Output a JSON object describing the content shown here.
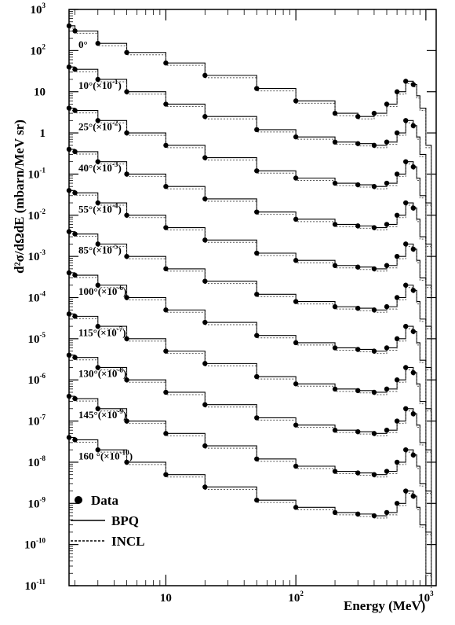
{
  "chart_data": {
    "type": "line",
    "xlabel": "Energy (MeV)",
    "ylabel": "d²σ/dΩdE (mbarn/MeV sr)",
    "xscale": "log",
    "yscale": "log",
    "xlim": [
      1.8,
      1200
    ],
    "ylim": [
      1e-11,
      1000
    ],
    "x_ticks": [
      {
        "value": 10,
        "base": "10",
        "exp": ""
      },
      {
        "value": 100,
        "base": "10",
        "exp": "2"
      },
      {
        "value": 1000,
        "base": "10",
        "exp": "3"
      }
    ],
    "y_ticks": [
      {
        "value": 1000,
        "base": "10",
        "exp": "3"
      },
      {
        "value": 100,
        "base": "10",
        "exp": "2"
      },
      {
        "value": 10,
        "base": "10",
        "exp": ""
      },
      {
        "value": 1,
        "base": "1",
        "exp": ""
      },
      {
        "value": 0.1,
        "base": "10",
        "exp": "-1"
      },
      {
        "value": 0.01,
        "base": "10",
        "exp": "-2"
      },
      {
        "value": 0.001,
        "base": "10",
        "exp": "-3"
      },
      {
        "value": 0.0001,
        "base": "10",
        "exp": "-4"
      },
      {
        "value": 1e-05,
        "base": "10",
        "exp": "-5"
      },
      {
        "value": 1e-06,
        "base": "10",
        "exp": "-6"
      },
      {
        "value": 1e-07,
        "base": "10",
        "exp": "-7"
      },
      {
        "value": 1e-08,
        "base": "10",
        "exp": "-8"
      },
      {
        "value": 1e-09,
        "base": "10",
        "exp": "-9"
      },
      {
        "value": 1e-10,
        "base": "10",
        "exp": "-10"
      },
      {
        "value": 1e-11,
        "base": "10",
        "exp": "-11"
      }
    ],
    "legend": {
      "position": "bottom-left",
      "entries": [
        {
          "label": "Data",
          "style": "marker"
        },
        {
          "label": "BPQ",
          "style": "solid"
        },
        {
          "label": "INCL",
          "style": "dotted"
        }
      ]
    },
    "series": [
      {
        "angle_label": "0°",
        "label_base": "0°",
        "label_exp": "",
        "x": [
          1.8,
          2,
          3,
          5,
          10,
          20,
          50,
          100,
          200,
          300,
          400,
          500,
          600,
          700,
          800,
          850,
          900,
          1000,
          1100
        ],
        "y": [
          400,
          300,
          150,
          90,
          50,
          25,
          12,
          6,
          3,
          2.5,
          3,
          5,
          10,
          18,
          15,
          8,
          4,
          0.5,
          0.01
        ]
      },
      {
        "angle_label": "10°(×10⁻¹)",
        "label_base": "10°(×10",
        "label_exp": "-1",
        "label_tail": ")",
        "x": [
          1.8,
          2,
          3,
          5,
          10,
          20,
          50,
          100,
          200,
          300,
          400,
          500,
          600,
          700,
          800,
          850,
          900,
          1000,
          1100
        ],
        "y": [
          40,
          35,
          20,
          10,
          5,
          2.5,
          1.2,
          0.8,
          0.6,
          0.55,
          0.5,
          0.6,
          1,
          2,
          1.5,
          0.8,
          0.3,
          0.02,
          0.001
        ]
      },
      {
        "angle_label": "25°(×10⁻²)",
        "label_base": "25°(×10",
        "label_exp": "-2",
        "label_tail": ")",
        "x": [
          1.8,
          2,
          3,
          5,
          10,
          20,
          50,
          100,
          200,
          300,
          400,
          500,
          600,
          700,
          800,
          850,
          900,
          1000,
          1100
        ],
        "y": [
          4,
          3.5,
          2,
          1,
          0.5,
          0.25,
          0.12,
          0.08,
          0.06,
          0.055,
          0.05,
          0.06,
          0.1,
          0.2,
          0.15,
          0.08,
          0.03,
          0.002,
          0.0001
        ]
      },
      {
        "angle_label": "40°(×10⁻³)",
        "label_base": "40°(×10",
        "label_exp": "-3",
        "label_tail": ")",
        "x": [
          1.8,
          2,
          3,
          5,
          10,
          20,
          50,
          100,
          200,
          300,
          400,
          500,
          600,
          700,
          800,
          850,
          900,
          1000,
          1100
        ],
        "y": [
          0.4,
          0.35,
          0.2,
          0.1,
          0.05,
          0.025,
          0.012,
          0.008,
          0.006,
          0.0055,
          0.005,
          0.006,
          0.01,
          0.02,
          0.015,
          0.008,
          0.003,
          0.0002,
          1e-05
        ]
      },
      {
        "angle_label": "55°(×10⁻⁴)",
        "label_base": "55°(×10",
        "label_exp": "-4",
        "label_tail": ")",
        "x": [
          1.8,
          2,
          3,
          5,
          10,
          20,
          50,
          100,
          200,
          300,
          400,
          500,
          600,
          700,
          800,
          850,
          900,
          1000,
          1100
        ],
        "y": [
          0.04,
          0.035,
          0.02,
          0.01,
          0.005,
          0.0025,
          0.0012,
          0.0008,
          0.0006,
          0.00055,
          0.0005,
          0.0006,
          0.001,
          0.002,
          0.0015,
          0.0008,
          0.0003,
          2e-05,
          1e-06
        ]
      },
      {
        "angle_label": "85°(×10⁻⁵)",
        "label_base": "85°(×10",
        "label_exp": "-5",
        "label_tail": ")",
        "x": [
          1.8,
          2,
          3,
          5,
          10,
          20,
          50,
          100,
          200,
          300,
          400,
          500,
          600,
          700,
          800,
          850,
          900,
          1000,
          1100
        ],
        "y": [
          0.004,
          0.0035,
          0.002,
          0.001,
          0.0005,
          0.00025,
          0.00012,
          8e-05,
          6e-05,
          5.5e-05,
          5e-05,
          6e-05,
          0.0001,
          0.0002,
          0.00015,
          8e-05,
          3e-05,
          2e-06,
          1e-07
        ]
      },
      {
        "angle_label": "100°(×10⁻⁶)",
        "label_base": "100°(×10",
        "label_exp": "-6",
        "label_tail": ")",
        "x": [
          1.8,
          2,
          3,
          5,
          10,
          20,
          50,
          100,
          200,
          300,
          400,
          500,
          600,
          700,
          800,
          850,
          900,
          1000,
          1100
        ],
        "y": [
          0.0004,
          0.00035,
          0.0002,
          0.0001,
          5e-05,
          2.5e-05,
          1.2e-05,
          8e-06,
          6e-06,
          5.5e-06,
          5e-06,
          6e-06,
          1e-05,
          2e-05,
          1.5e-05,
          8e-06,
          3e-06,
          2e-07,
          1e-08
        ]
      },
      {
        "angle_label": "115°(×10⁻⁷)",
        "label_base": "115°(×10",
        "label_exp": "-7",
        "label_tail": ")",
        "x": [
          1.8,
          2,
          3,
          5,
          10,
          20,
          50,
          100,
          200,
          300,
          400,
          500,
          600,
          700,
          800,
          850,
          900,
          1000,
          1100
        ],
        "y": [
          4e-05,
          3.5e-05,
          2e-05,
          1e-05,
          5e-06,
          2.5e-06,
          1.2e-06,
          8e-07,
          6e-07,
          5.5e-07,
          5e-07,
          6e-07,
          1e-06,
          2e-06,
          1.5e-06,
          8e-07,
          3e-07,
          2e-08,
          1e-09
        ]
      },
      {
        "angle_label": "130°(×10⁻⁸)",
        "label_base": "130°(×10",
        "label_exp": "-8",
        "label_tail": ")",
        "x": [
          1.8,
          2,
          3,
          5,
          10,
          20,
          50,
          100,
          200,
          300,
          400,
          500,
          600,
          700,
          800,
          850,
          900,
          1000,
          1100
        ],
        "y": [
          4e-06,
          3.5e-06,
          2e-06,
          1e-06,
          5e-07,
          2.5e-07,
          1.2e-07,
          8e-08,
          6e-08,
          5.5e-08,
          5e-08,
          6e-08,
          1e-07,
          2e-07,
          1.5e-07,
          8e-08,
          3e-08,
          2e-09,
          1e-10
        ]
      },
      {
        "angle_label": "145°(×10⁻⁹)",
        "label_base": "145°(×10",
        "label_exp": "-9",
        "label_tail": ")",
        "x": [
          1.8,
          2,
          3,
          5,
          10,
          20,
          50,
          100,
          200,
          300,
          400,
          500,
          600,
          700,
          800,
          850,
          900,
          1000,
          1100
        ],
        "y": [
          4e-07,
          3.5e-07,
          2e-07,
          1e-07,
          5e-08,
          2.5e-08,
          1.2e-08,
          8e-09,
          6e-09,
          5.5e-09,
          5e-09,
          6e-09,
          1e-08,
          2e-08,
          1.5e-08,
          8e-09,
          3e-09,
          2e-10,
          1e-11
        ]
      },
      {
        "angle_label": "160 °(×10⁻¹⁰)",
        "label_base": "160 °(×10",
        "label_exp": "-10",
        "label_tail": ")",
        "x": [
          1.8,
          2,
          3,
          5,
          10,
          20,
          50,
          100,
          200,
          300,
          400,
          500,
          600,
          700,
          800,
          850,
          900,
          1000,
          1100
        ],
        "y": [
          4e-08,
          3.5e-08,
          2e-08,
          1e-08,
          5e-09,
          2.5e-09,
          1.2e-09,
          8e-10,
          6e-10,
          5.5e-10,
          5e-10,
          6e-10,
          1e-09,
          2e-09,
          1.5e-09,
          8e-10,
          3e-10,
          2e-11,
          1e-12
        ]
      }
    ]
  }
}
